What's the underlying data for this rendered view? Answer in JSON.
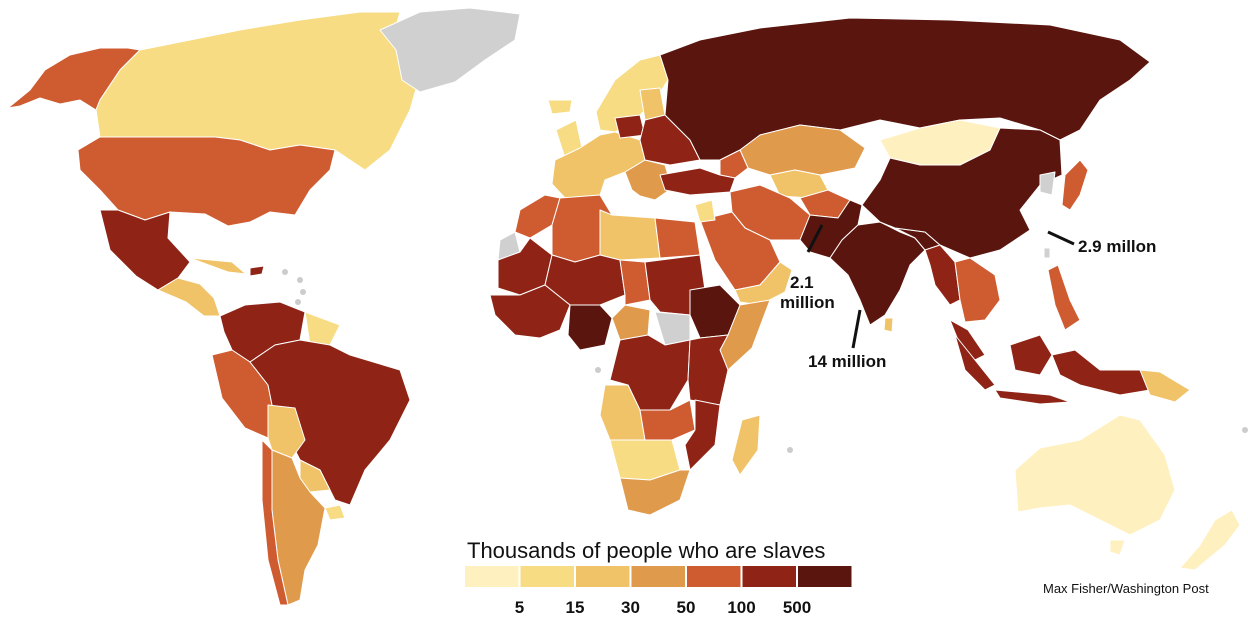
{
  "legend": {
    "title": "Thousands of people who are slaves",
    "colors": [
      "#fff0bf",
      "#f7dc84",
      "#f0c368",
      "#e09a4c",
      "#cf5b31",
      "#8f2416",
      "#5a160e"
    ],
    "ticks": [
      "5",
      "15",
      "30",
      "50",
      "100",
      "500"
    ],
    "no_data_color": "#d0d0d0"
  },
  "annotations": {
    "pakistan_line1": "2.1",
    "pakistan_line2": "million",
    "india": "14 million",
    "china": "2.9 millon"
  },
  "credit": "Max Fisher/Washington Post"
}
